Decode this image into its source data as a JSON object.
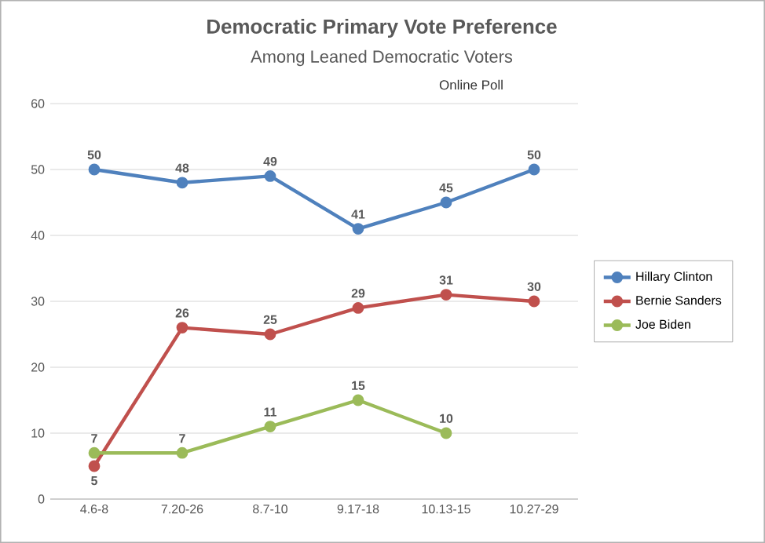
{
  "chart_data": {
    "type": "line",
    "title": "Democratic Primary Vote Preference",
    "subtitle": "Among Leaned Democratic Voters",
    "annotations": [
      "Online Poll"
    ],
    "categories": [
      "4.6-8",
      "7.20-26",
      "8.7-10",
      "9.17-18",
      "10.13-15",
      "10.27-29"
    ],
    "series": [
      {
        "name": "Hillary Clinton",
        "color": "#4f81bd",
        "values": [
          50,
          48,
          49,
          41,
          45,
          50
        ]
      },
      {
        "name": "Bernie Sanders",
        "color": "#c0504d",
        "values": [
          5,
          26,
          25,
          29,
          31,
          30
        ]
      },
      {
        "name": "Joe Biden",
        "color": "#9bbb59",
        "values": [
          7,
          7,
          11,
          15,
          10,
          null
        ]
      }
    ],
    "ylim": [
      0,
      60
    ],
    "yticks": [
      0,
      10,
      20,
      30,
      40,
      50,
      60
    ],
    "grid": "y",
    "legend": "right",
    "marker": "circle",
    "line_style": "solid",
    "data_labels": true
  }
}
